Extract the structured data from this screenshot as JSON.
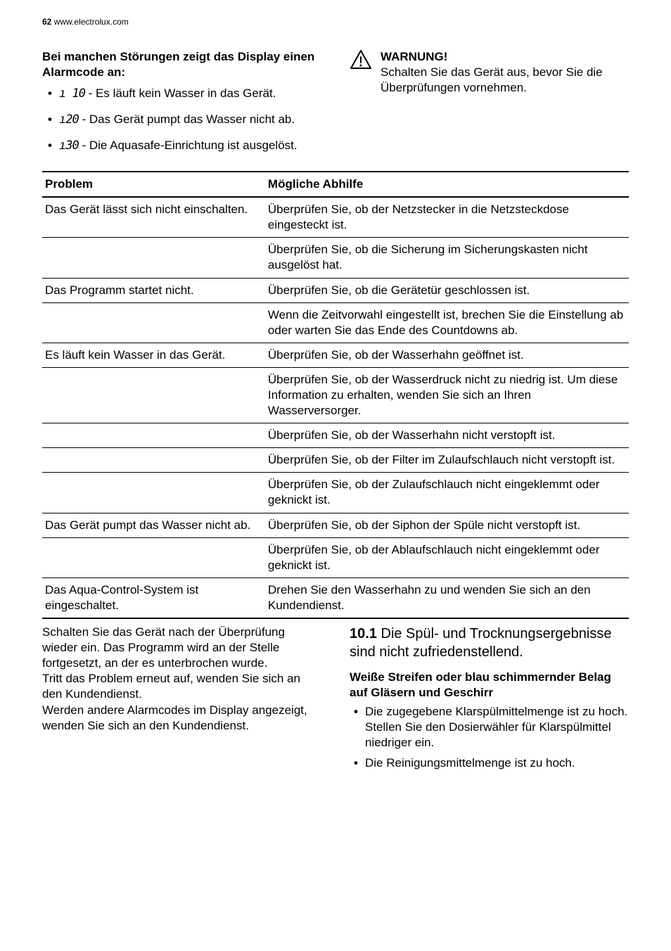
{
  "header": {
    "page_num": "62",
    "url": "www.electrolux.com"
  },
  "intro": {
    "title": "Bei manchen Störungen zeigt das Display einen Alarmcode an:",
    "alarms": [
      {
        "code": "ı 10",
        "desc": " - Es läuft kein Wasser in das Gerät."
      },
      {
        "code": "ı20",
        "desc": " - Das Gerät pumpt das Wasser nicht ab."
      },
      {
        "code": "ı30",
        "desc": " - Die Aquasafe-Einrichtung ist ausgelöst."
      }
    ]
  },
  "warning": {
    "title": "WARNUNG!",
    "text": "Schalten Sie das Gerät aus, bevor Sie die Überprüfungen vornehmen."
  },
  "table": {
    "head_problem": "Problem",
    "head_solution": "Mögliche Abhilfe",
    "rows": [
      {
        "problem": "Das Gerät lässt sich nicht einschalten.",
        "solution": "Überprüfen Sie, ob der Netzstecker in die Netzsteckdose eingesteckt ist."
      },
      {
        "problem": "",
        "solution": "Überprüfen Sie, ob die Sicherung im Sicherungskasten nicht ausgelöst hat."
      },
      {
        "problem": "Das Programm startet nicht.",
        "solution": "Überprüfen Sie, ob die Gerätetür geschlossen ist."
      },
      {
        "problem": "",
        "solution": "Wenn die Zeitvorwahl eingestellt ist, brechen Sie die Einstellung ab oder warten Sie das Ende des Countdowns ab."
      },
      {
        "problem": "Es läuft kein Wasser in das Gerät.",
        "solution": "Überprüfen Sie, ob der Wasserhahn geöffnet ist."
      },
      {
        "problem": "",
        "solution": "Überprüfen Sie, ob der Wasserdruck nicht zu niedrig ist. Um diese Information zu erhalten, wenden Sie sich an Ihren Wasserversorger."
      },
      {
        "problem": "",
        "solution": "Überprüfen Sie, ob der Wasserhahn nicht verstopft ist."
      },
      {
        "problem": "",
        "solution": "Überprüfen Sie, ob der Filter im Zulaufschlauch nicht verstopft ist."
      },
      {
        "problem": "",
        "solution": "Überprüfen Sie, ob der Zulaufschlauch nicht eingeklemmt oder geknickt ist."
      },
      {
        "problem": "Das Gerät pumpt das Wasser nicht ab.",
        "solution": "Überprüfen Sie, ob der Siphon der Spüle nicht verstopft ist."
      },
      {
        "problem": "",
        "solution": "Überprüfen Sie, ob der Ablaufschlauch nicht eingeklemmt oder geknickt ist."
      },
      {
        "problem": "Das Aqua-Control-System ist eingeschaltet.",
        "solution": "Drehen Sie den Wasserhahn zu und wenden Sie sich an den Kundendienst."
      }
    ]
  },
  "bottom_left": "Schalten Sie das Gerät nach der Überprüfung wieder ein. Das Programm wird an der Stelle fortgesetzt, an der es unterbrochen wurde.\nTritt das Problem erneut auf, wenden Sie sich an den Kundendienst.\nWerden andere Alarmcodes im Display angezeigt, wenden Sie sich an den Kundendienst.",
  "subsection": {
    "number": "10.1",
    "title_rest": " Die Spül- und Trocknungsergebnisse sind nicht zufriedenstellend.",
    "subhead": "Weiße Streifen oder blau schimmernder Belag auf Gläsern und Geschirr",
    "items": [
      "Die zugegebene Klarspülmittelmenge ist zu hoch. Stellen Sie den Dosierwähler für Klarspülmittel niedriger ein.",
      "Die Reinigungsmittelmenge ist zu hoch."
    ]
  }
}
